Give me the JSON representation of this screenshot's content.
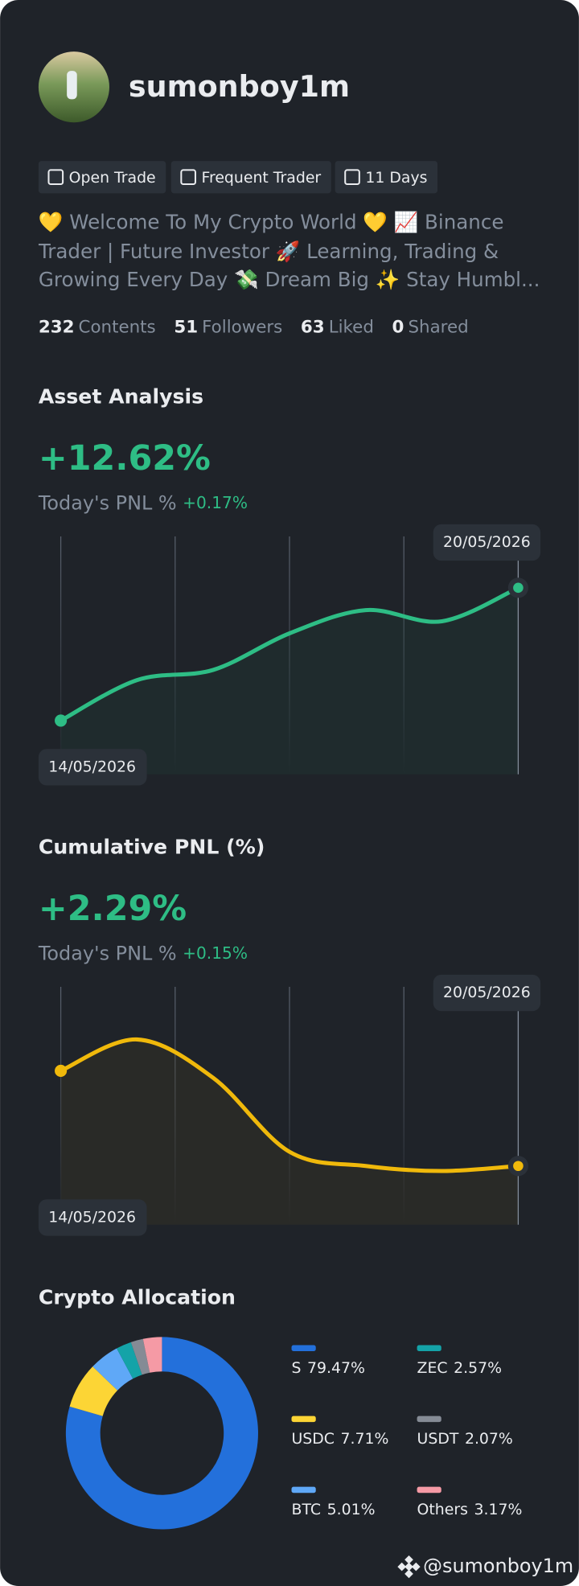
{
  "profile": {
    "username": "sumonboy1m",
    "tags": [
      "Open Trade",
      "Frequent Trader",
      "11 Days"
    ],
    "bio": "💛 Welcome To My Crypto World 💛 📈 Binance Trader | Future Investor 🚀 Learning, Trading & Growing Every Day 💸 Dream Big ✨ Stay Humbl...",
    "stats": [
      {
        "value": 232,
        "label": "Contents"
      },
      {
        "value": 51,
        "label": "Followers"
      },
      {
        "value": 63,
        "label": "Liked"
      },
      {
        "value": 0,
        "label": "Shared"
      }
    ]
  },
  "chart_data": [
    {
      "type": "line",
      "title": "Asset Analysis",
      "headline": "+12.62%",
      "subtitle": "Today's PNL %",
      "change": "+0.17%",
      "categories": [
        "14/05/2026",
        null,
        null,
        null,
        null,
        null,
        "20/05/2026"
      ],
      "series": [
        {
          "color": "#2ebd85",
          "values": [
            0,
            3.85,
            4.82,
            8.29,
            10.5,
            9.44,
            12.62
          ]
        }
      ],
      "ylim": [
        -5.1,
        17.5
      ]
    },
    {
      "type": "line",
      "title": "Cumulative PNL (%)",
      "headline": "+2.29%",
      "subtitle": "Today's PNL %",
      "change": "+0.15%",
      "categories": [
        "14/05/2026",
        null,
        null,
        null,
        null,
        null,
        "20/05/2026"
      ],
      "series": [
        {
          "color": "#f0b90b",
          "values": [
            6.99,
            8.54,
            6.64,
            2.99,
            2.29,
            2.04,
            2.29
          ]
        }
      ],
      "ylim": [
        -0.61,
        11.14
      ]
    },
    {
      "type": "pie",
      "title": "Crypto Allocation",
      "categories": [
        "S",
        "USDC",
        "BTC",
        "ZEC",
        "USDT",
        "Others"
      ],
      "values": [
        79.47,
        7.71,
        5.01,
        2.57,
        2.07,
        3.17
      ],
      "value_labels": [
        "79.47%",
        "7.71%",
        "5.01%",
        "2.57%",
        "2.07%",
        "3.17%"
      ],
      "colors": [
        "#2370db",
        "#fcd535",
        "#5fa8f7",
        "#14a3a8",
        "#858b95",
        "#f59aa5"
      ]
    }
  ],
  "footer": {
    "handle": "@sumonboy1m"
  }
}
